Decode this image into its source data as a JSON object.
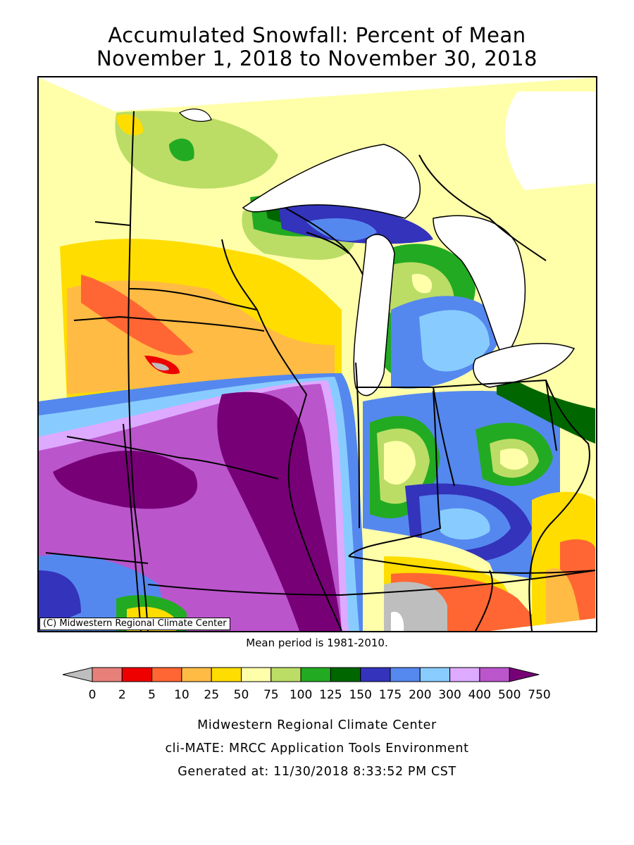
{
  "title_line1": "Accumulated Snowfall: Percent of Mean",
  "title_line2": "November 1, 2018 to November 30, 2018",
  "copyright": "(C) Midwestern Regional Climate Center",
  "mean_period": "Mean period is 1981-2010.",
  "legend": {
    "labels": [
      "0",
      "2",
      "5",
      "10",
      "25",
      "50",
      "75",
      "100",
      "125",
      "150",
      "175",
      "200",
      "300",
      "400",
      "500",
      "750"
    ],
    "colors": [
      "#bebebe",
      "#e8807a",
      "#ee0000",
      "#ff6633",
      "#ffbb44",
      "#ffdd00",
      "#ffffaa",
      "#bbdd66",
      "#22aa22",
      "#006600",
      "#3333bb",
      "#5588ee",
      "#88ccff",
      "#ddaaff",
      "#bb55cc",
      "#770077"
    ]
  },
  "footer": {
    "line1": "Midwestern Regional Climate Center",
    "line2": "cli-MATE: MRCC Application Tools Environment",
    "line3": "Generated at: 11/30/2018 8:33:52 PM CST"
  }
}
